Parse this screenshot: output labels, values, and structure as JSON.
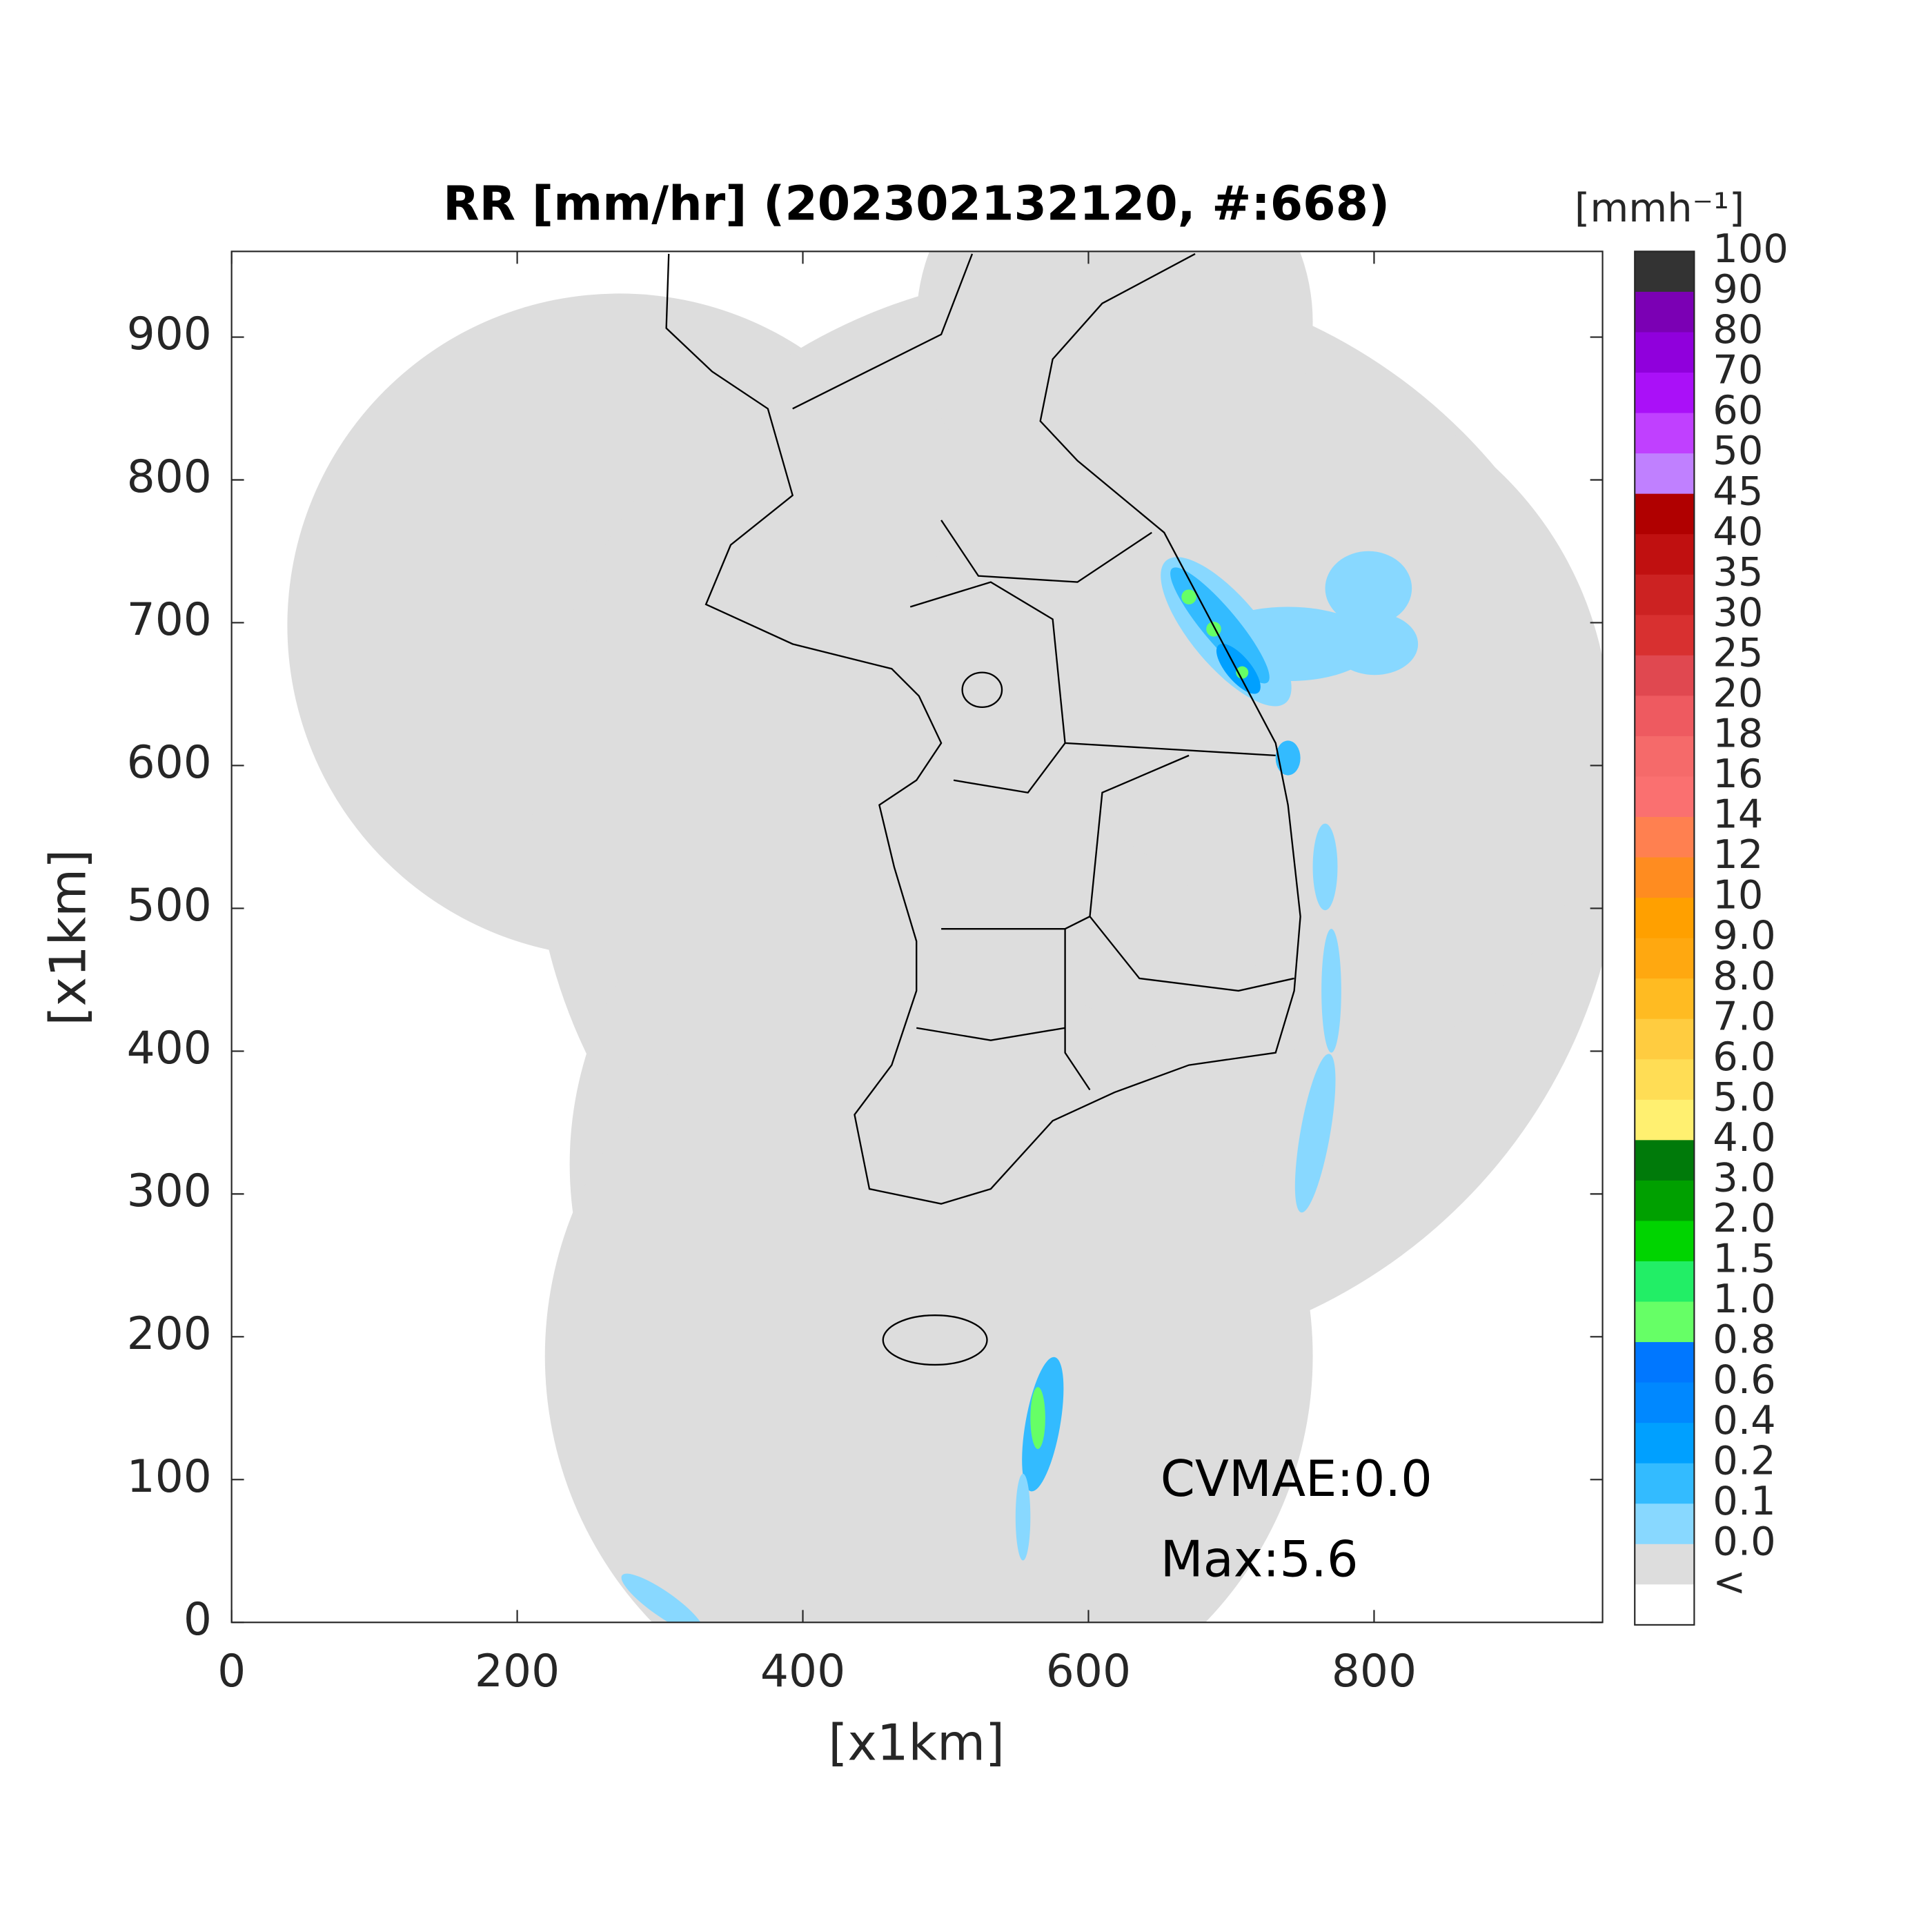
{
  "chart_data": {
    "type": "radar-map",
    "title": "RR [mm/hr] (202302132120, #:668)",
    "x_label": "[x1km]",
    "y_label": "[x1km]",
    "xlim": [
      0,
      960
    ],
    "ylim": [
      0,
      960
    ],
    "xticks": [
      0,
      200,
      400,
      600,
      800
    ],
    "yticks": [
      0,
      100,
      200,
      300,
      400,
      500,
      600,
      700,
      800,
      900
    ],
    "annotations": [
      "CVMAE:0.0",
      "Max:5.6"
    ],
    "colorbar": {
      "title": "[mmh⁻¹]",
      "ticks": [
        100,
        90,
        80,
        70,
        60,
        50,
        45,
        40,
        35,
        30,
        25,
        20,
        18,
        16,
        14,
        12,
        10,
        {
          "value": 9,
          "label": "9.0"
        },
        {
          "value": 8,
          "label": "8.0"
        },
        {
          "value": 7,
          "label": "7.0"
        },
        {
          "value": 6,
          "label": "6.0"
        },
        {
          "value": 5,
          "label": "5.0"
        },
        {
          "value": 4,
          "label": "4.0"
        },
        {
          "value": 3,
          "label": "3.0"
        },
        {
          "value": 2,
          "label": "2.0"
        },
        1.5,
        {
          "value": 1,
          "label": "1.0"
        },
        0.8,
        0.6,
        0.4,
        0.2,
        0.1,
        {
          "value": 0,
          "label": "0.0"
        },
        "<"
      ],
      "colors": [
        "#333333",
        "#7b00b4",
        "#9000dc",
        "#aa10f8",
        "#c040ff",
        "#c080ff",
        "#b00000",
        "#c01010",
        "#cc2222",
        "#d83030",
        "#e04850",
        "#ee5a60",
        "#f56a6a",
        "#fa7070",
        "#ff8050",
        "#ff8c20",
        "#ffa000",
        "#ffa810",
        "#ffbb22",
        "#ffcc40",
        "#ffdd55",
        "#fff070",
        "#007a0a",
        "#00a000",
        "#00d400",
        "#22ee66",
        "#66ff66",
        "#0077ff",
        "#0088ff",
        "#00a0ff",
        "#33bbff",
        "#88d8ff",
        "#dddddd",
        "#ffffff"
      ]
    }
  }
}
